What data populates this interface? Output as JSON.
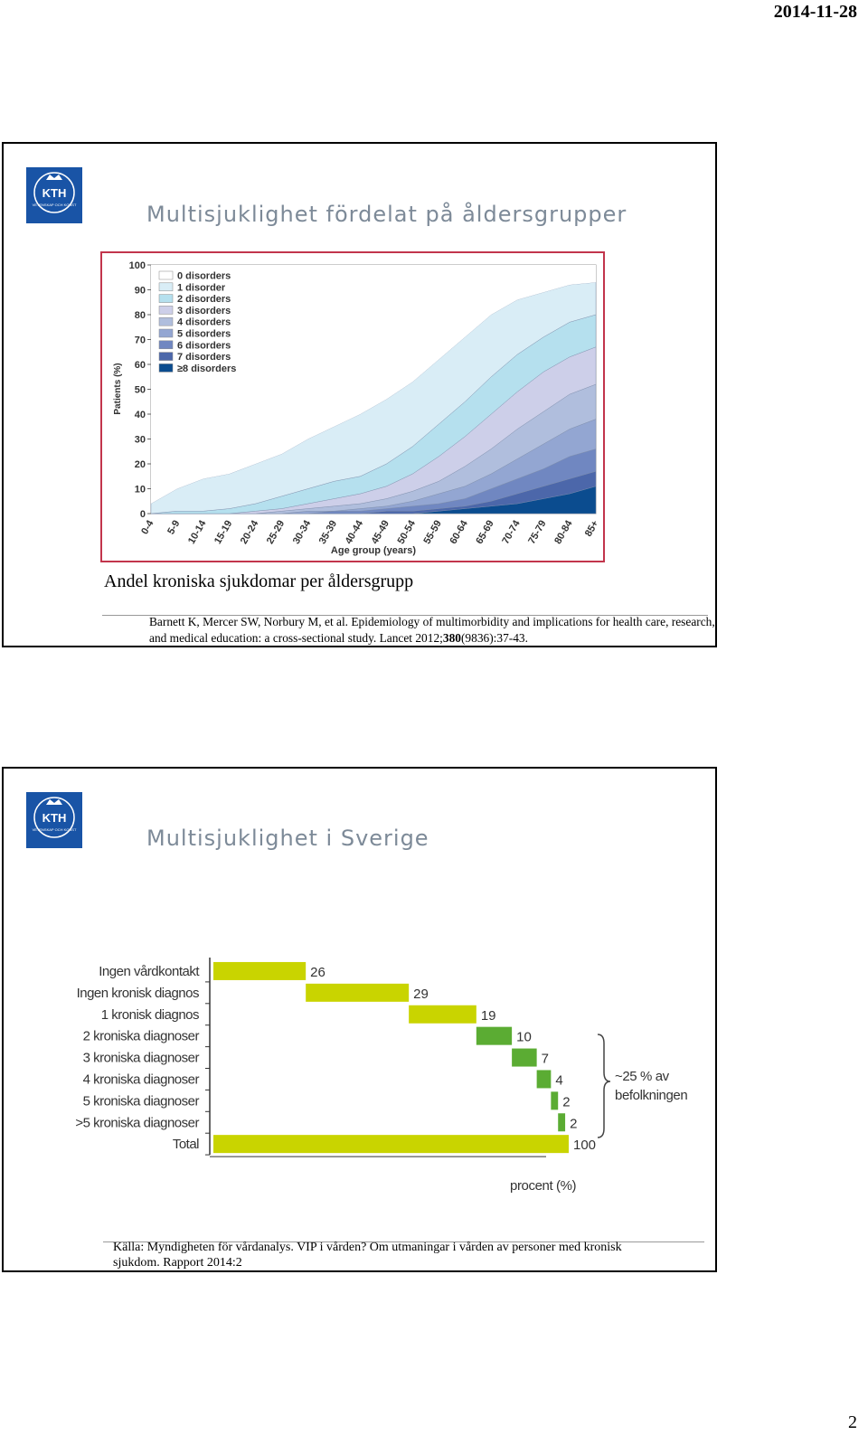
{
  "header": {
    "date": "2014-11-28"
  },
  "page_number": "2",
  "slides": [
    {
      "logo": {
        "text": "KTH",
        "subtext": "VETENSKAP OCH KONST"
      },
      "title": "Multisjuklighet fördelat på åldersgrupper",
      "chart": {
        "type": "area",
        "stacked": true,
        "y_label": "Patients (%)",
        "x_label": "Age group (years)",
        "categories": [
          "0-4",
          "5-9",
          "10-14",
          "15-19",
          "20-24",
          "25-29",
          "30-34",
          "35-39",
          "40-44",
          "45-49",
          "50-54",
          "55-59",
          "60-64",
          "65-69",
          "70-74",
          "75-79",
          "80-84",
          "85+"
        ],
        "ylim": [
          0,
          100
        ],
        "yticks": [
          0,
          10,
          20,
          30,
          40,
          50,
          60,
          70,
          80,
          90,
          100
        ],
        "legend": "upper left",
        "series": [
          {
            "name": "0 disorders",
            "color": "#ffffff",
            "values": [
              96,
              90,
              86,
              84,
              80,
              76,
              70,
              65,
              60,
              54,
              47,
              38,
              29,
              20,
              14,
              11,
              8,
              7
            ]
          },
          {
            "name": "1 disorder",
            "color": "#d9edf6",
            "values": [
              4,
              9,
              13,
              14,
              16,
              17,
              20,
              22,
              25,
              26,
              26,
              26,
              26,
              25,
              22,
              18,
              15,
              13
            ]
          },
          {
            "name": "2 disorders",
            "color": "#b5e0ee",
            "values": [
              0,
              1,
              1,
              2,
              3,
              5,
              6,
              7,
              7,
              9,
              11,
              13,
              14,
              15,
              15,
              14,
              14,
              13
            ]
          },
          {
            "name": "3 disorders",
            "color": "#cdcfe9",
            "values": [
              0,
              0,
              0,
              0,
              1,
              1,
              2,
              3,
              4,
              5,
              7,
              10,
              12,
              14,
              15,
              16,
              15,
              15
            ]
          },
          {
            "name": "4 disorders",
            "color": "#b0bedd",
            "values": [
              0,
              0,
              0,
              0,
              0,
              1,
              1,
              2,
              2,
              3,
              4,
              5,
              8,
              10,
              12,
              13,
              14,
              14
            ]
          },
          {
            "name": "5 disorders",
            "color": "#93a6d2",
            "values": [
              0,
              0,
              0,
              0,
              0,
              0,
              1,
              0,
              1,
              1,
              2,
              4,
              5,
              6,
              8,
              10,
              11,
              12
            ]
          },
          {
            "name": "6 disorders",
            "color": "#7087c1",
            "values": [
              0,
              0,
              0,
              0,
              0,
              0,
              0,
              1,
              1,
              1,
              2,
              2,
              3,
              5,
              6,
              7,
              9,
              9
            ]
          },
          {
            "name": "7 disorders",
            "color": "#4c67aa",
            "values": [
              0,
              0,
              0,
              0,
              0,
              0,
              0,
              0,
              0,
              1,
              1,
              1,
              1,
              2,
              4,
              5,
              6,
              6
            ]
          },
          {
            "name": "≥8 disorders",
            "color": "#0b4c8f",
            "values": [
              0,
              0,
              0,
              0,
              0,
              0,
              0,
              0,
              0,
              0,
              0,
              1,
              2,
              3,
              4,
              6,
              8,
              11
            ]
          }
        ]
      },
      "caption": "Andel kroniska sjukdomar per åldersgrupp",
      "reference": {
        "parts": [
          "Barnett K, Mercer SW, Norbury M, et al. Epidemiology of multimorbidity and implications for health care, research, and medical education: a cross-sectional study. Lancet 2012;",
          "380",
          "(9836):37-43."
        ]
      }
    },
    {
      "logo": {
        "text": "KTH",
        "subtext": "VETENSKAP OCH KONST"
      },
      "title": "Multisjuklighet i Sverige",
      "chart": {
        "type": "waterfall",
        "categories": [
          "Ingen vårdkontakt",
          "Ingen kronisk diagnos",
          "1 kronisk diagnos",
          "2 kroniska diagnoser",
          "3 kroniska diagnoser",
          "4 kroniska diagnoser",
          "5 kroniska diagnoser",
          ">5 kroniska diagnoser",
          "Total"
        ],
        "values": [
          26,
          29,
          19,
          10,
          7,
          4,
          2,
          2,
          100
        ],
        "measure": [
          "relative",
          "relative",
          "relative",
          "relative",
          "relative",
          "relative",
          "relative",
          "relative",
          "total"
        ],
        "colors": [
          "#c9d400",
          "#c9d400",
          "#c9d400",
          "#5bac33",
          "#5bac33",
          "#5bac33",
          "#5bac33",
          "#5bac33",
          "#c9d400"
        ],
        "xlim": [
          0,
          100
        ],
        "x_label": "procent (%)",
        "annotation": "~25 % av befolkningen"
      },
      "source": "Källa: Myndigheten för vårdanalys. VIP i vården? Om utmaningar i vården av personer med kronisk sjukdom. Rapport 2014:2"
    }
  ]
}
